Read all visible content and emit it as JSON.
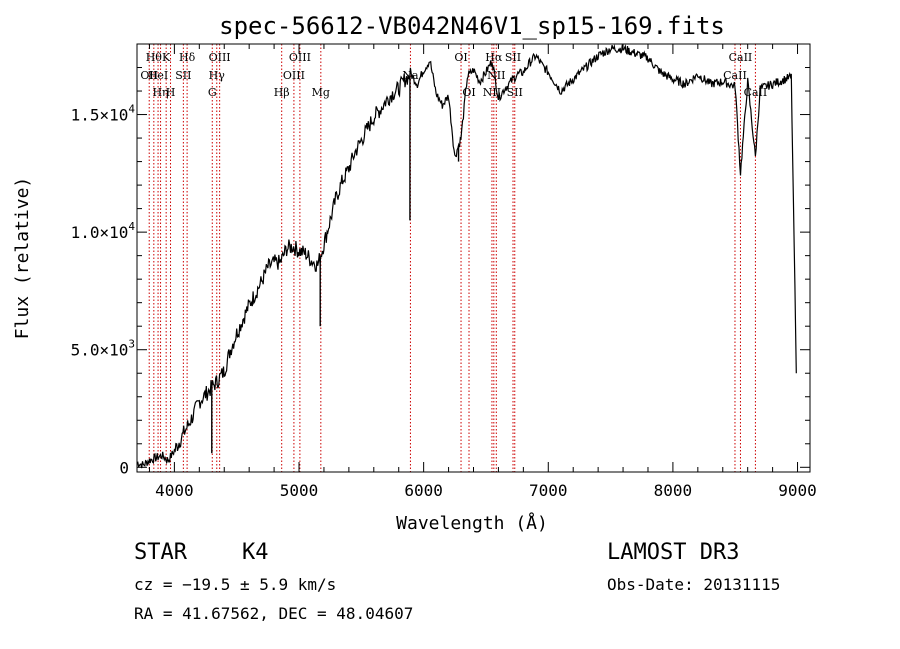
{
  "chart_data": {
    "type": "line",
    "title": "spec-56612-VB042N46V1_sp15-169.fits",
    "xlabel": "Wavelength (Å)",
    "ylabel": "Flux (relative)",
    "xlim": [
      3700,
      9100
    ],
    "ylim": [
      -200,
      18000
    ],
    "x_ticks": [
      {
        "value": 4000,
        "label": "4000"
      },
      {
        "value": 5000,
        "label": "5000"
      },
      {
        "value": 6000,
        "label": "6000"
      },
      {
        "value": 7000,
        "label": "7000"
      },
      {
        "value": 8000,
        "label": "8000"
      },
      {
        "value": 9000,
        "label": "9000"
      }
    ],
    "y_ticks": [
      {
        "value": 0,
        "mantissa": "0",
        "exponent": ""
      },
      {
        "value": 5000,
        "mantissa": "5.0×10",
        "exponent": "3"
      },
      {
        "value": 10000,
        "mantissa": "1.0×10",
        "exponent": "4"
      },
      {
        "value": 15000,
        "mantissa": "1.5×10",
        "exponent": "4"
      }
    ],
    "series": [
      {
        "name": "spectrum",
        "color": "#000000",
        "x": [
          3700,
          3750,
          3800,
          3850,
          3900,
          3950,
          4000,
          4050,
          4100,
          4150,
          4200,
          4250,
          4300,
          4350,
          4400,
          4450,
          4500,
          4550,
          4600,
          4650,
          4700,
          4750,
          4800,
          4850,
          4900,
          4950,
          5000,
          5050,
          5100,
          5150,
          5200,
          5250,
          5300,
          5350,
          5400,
          5450,
          5500,
          5550,
          5600,
          5650,
          5700,
          5750,
          5800,
          5850,
          5900,
          5950,
          6000,
          6050,
          6100,
          6150,
          6200,
          6250,
          6300,
          6350,
          6400,
          6450,
          6500,
          6550,
          6600,
          6650,
          6700,
          6750,
          6800,
          6850,
          6900,
          6950,
          7000,
          7100,
          7200,
          7300,
          7400,
          7500,
          7600,
          7700,
          7800,
          7900,
          8000,
          8100,
          8200,
          8300,
          8400,
          8450,
          8500,
          8542,
          8600,
          8662,
          8700,
          8800,
          8900,
          8950,
          8990
        ],
        "y": [
          200,
          100,
          300,
          400,
          500,
          300,
          700,
          1200,
          1700,
          2200,
          2800,
          3100,
          3400,
          3700,
          4100,
          5000,
          5700,
          6300,
          6900,
          7400,
          7900,
          8500,
          8700,
          8700,
          9300,
          9400,
          9200,
          9100,
          8800,
          8600,
          9500,
          10500,
          11500,
          12200,
          12700,
          13400,
          13900,
          14400,
          14900,
          15200,
          15600,
          15900,
          16100,
          16500,
          16700,
          16300,
          16900,
          17300,
          15900,
          15400,
          15800,
          13200,
          14000,
          16600,
          16900,
          16400,
          16800,
          17300,
          15700,
          16100,
          16400,
          16700,
          16800,
          17200,
          17500,
          17100,
          16800,
          16000,
          16500,
          17000,
          17500,
          17800,
          17800,
          17600,
          17400,
          16800,
          16500,
          16300,
          16700,
          16300,
          16400,
          16300,
          16200,
          12500,
          16400,
          13200,
          16100,
          16300,
          16500,
          16600,
          4000
        ]
      }
    ],
    "absorption_features": [
      {
        "x": 5890,
        "y": 10500
      },
      {
        "x": 5170,
        "y": 6000
      },
      {
        "x": 4300,
        "y": 600
      },
      {
        "x": 6280,
        "y": 13000
      }
    ],
    "line_markers": [
      {
        "x": 3798,
        "label": "OII",
        "row": 1
      },
      {
        "x": 3835,
        "label": "Hθ",
        "row": 0
      },
      {
        "x": 3869,
        "label": "HeI",
        "row": 1
      },
      {
        "x": 3889,
        "label": "Hη",
        "row": 2
      },
      {
        "x": 3934,
        "label": "K",
        "row": 0
      },
      {
        "x": 3969,
        "label": "H",
        "row": 2
      },
      {
        "x": 4072,
        "label": "SII",
        "row": 1
      },
      {
        "x": 4102,
        "label": "Hδ",
        "row": 0
      },
      {
        "x": 4304,
        "label": "G",
        "row": 2
      },
      {
        "x": 4340,
        "label": "Hγ",
        "row": 1
      },
      {
        "x": 4363,
        "label": "OIII",
        "row": 0
      },
      {
        "x": 4861,
        "label": "Hβ",
        "row": 2
      },
      {
        "x": 4959,
        "label": "OIII",
        "row": 1
      },
      {
        "x": 5007,
        "label": "OIII",
        "row": 0
      },
      {
        "x": 5175,
        "label": "Mg",
        "row": 2
      },
      {
        "x": 5894,
        "label": "Na",
        "row": 1
      },
      {
        "x": 6300,
        "label": "OI",
        "row": 0
      },
      {
        "x": 6364,
        "label": "OI",
        "row": 2
      },
      {
        "x": 6548,
        "label": "NII",
        "row": 2
      },
      {
        "x": 6563,
        "label": "Hα",
        "row": 0
      },
      {
        "x": 6583,
        "label": "NII",
        "row": 1
      },
      {
        "x": 6717,
        "label": "SII",
        "row": 0
      },
      {
        "x": 6731,
        "label": "SII",
        "row": 2
      },
      {
        "x": 8498,
        "label": "CaII",
        "row": 1
      },
      {
        "x": 8542,
        "label": "CaII",
        "row": 0
      },
      {
        "x": 8662,
        "label": "CaII",
        "row": 2
      }
    ],
    "marker_color": "#cc0000",
    "grid": false,
    "legend": "none"
  },
  "info": {
    "class_label": "STAR",
    "subclass_label": "K4",
    "survey_label": "LAMOST DR3",
    "redshift_text": "cz = −19.5 ± 5.9 km/s",
    "obs_date_text": "Obs-Date: 20131115",
    "coords_text": "RA =  41.67562, DEC =  48.04607"
  }
}
